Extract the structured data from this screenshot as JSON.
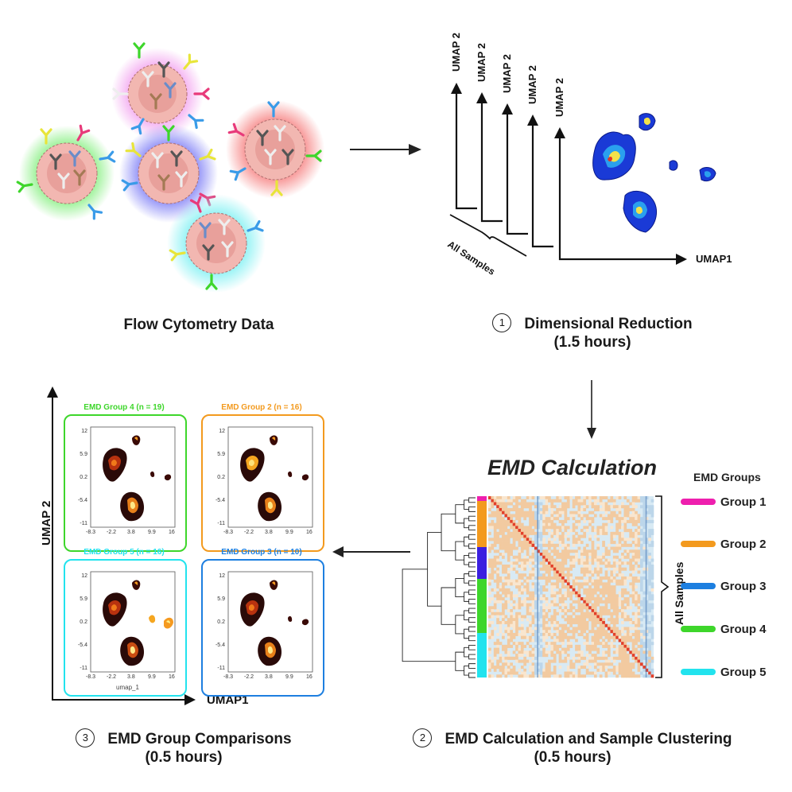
{
  "flow": {
    "caption": "Flow Cytometry Data"
  },
  "dimred": {
    "step": "1",
    "caption_line1": "Dimensional Reduction",
    "caption_line2": "(1.5 hours)",
    "y_axis_label": "UMAP 2",
    "x_axis_label": "UMAP1",
    "brace_label": "All Samples"
  },
  "emd": {
    "title": "EMD Calculation",
    "side_label": "All Samples",
    "legend_title": "EMD Groups",
    "groups": [
      {
        "label": "Group 1",
        "color": "#ee1fae"
      },
      {
        "label": "Group 2",
        "color": "#f39a1e"
      },
      {
        "label": "Group 3",
        "color": "#1d7fe0"
      },
      {
        "label": "Group 4",
        "color": "#3ed62b"
      },
      {
        "label": "Group 5",
        "color": "#22e3ee"
      }
    ],
    "step": "2",
    "caption_line1": "EMD Calculation and Sample Clustering",
    "caption_line2": "(0.5 hours)"
  },
  "comparisons": {
    "step": "3",
    "caption_line1": "EMD Group Comparisons",
    "caption_line2": "(0.5 hours)",
    "y_axis_label": "UMAP 2",
    "x_axis_label": "UMAP1",
    "panel_xlabel": "umap_1",
    "y_ticks": [
      "12",
      "5.9",
      "0.2",
      "-5.4",
      "-11"
    ],
    "x_ticks": [
      "-8.3",
      "-2.2",
      "3.8",
      "9.9",
      "16"
    ],
    "panels": [
      {
        "title": "EMD Group 4 (n = 19)",
        "color": "#3ed62b"
      },
      {
        "title": "EMD Group 2 (n = 16)",
        "color": "#f39a1e"
      },
      {
        "title": "EMD Group 5 (n = 16)",
        "color": "#22e3ee"
      },
      {
        "title": "EMD Group 3 (n = 10)",
        "color": "#1d7fe0"
      }
    ]
  }
}
